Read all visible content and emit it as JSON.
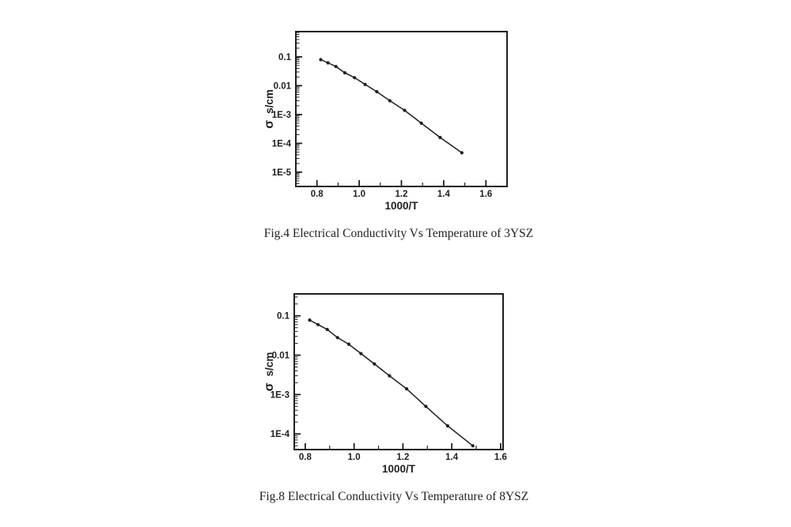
{
  "page": {
    "background": "#ffffff",
    "ink": "#1f1f1f"
  },
  "chart_data": [
    {
      "type": "line",
      "caption": "Fig.4 Electrical Conductivity Vs Temperature of 3YSZ",
      "xlabel": "1000/T",
      "ylabel": "σ s/cm",
      "xscale": "linear",
      "yscale": "log",
      "grid": false,
      "marker": "dot",
      "line_color": "#1f1f1f",
      "x": [
        0.818,
        0.852,
        0.89,
        0.932,
        0.978,
        1.028,
        1.083,
        1.145,
        1.215,
        1.294,
        1.383,
        1.486
      ],
      "y": [
        0.08,
        0.062,
        0.046,
        0.028,
        0.019,
        0.011,
        0.0062,
        0.003,
        0.0014,
        0.0005,
        0.00016,
        4.7e-05
      ],
      "xlim": [
        0.7,
        1.7
      ],
      "ylim": [
        3.2e-06,
        0.75
      ],
      "xticks": [
        0.8,
        1.0,
        1.2,
        1.4,
        1.6
      ],
      "xtick_labels": [
        "0.8",
        "1.0",
        "1.2",
        "1.4",
        "1.6"
      ],
      "yticks": [
        0.1,
        0.01,
        0.001,
        0.0001,
        1e-05
      ],
      "ytick_labels": [
        "0.1",
        "0.01",
        "1E-3",
        "1E-4",
        "1E-5"
      ]
    },
    {
      "type": "line",
      "caption": "Fig.8 Electrical Conductivity Vs Temperature of 8YSZ",
      "xlabel": "1000/T",
      "ylabel": "σ s/cm",
      "xscale": "linear",
      "yscale": "log",
      "grid": false,
      "marker": "dot",
      "line_color": "#1f1f1f",
      "x": [
        0.818,
        0.852,
        0.89,
        0.932,
        0.978,
        1.028,
        1.083,
        1.145,
        1.215,
        1.294,
        1.383,
        1.486
      ],
      "y": [
        0.078,
        0.06,
        0.045,
        0.028,
        0.019,
        0.011,
        0.006,
        0.003,
        0.0014,
        0.0005,
        0.00016,
        5e-05
      ],
      "xlim": [
        0.755,
        1.61
      ],
      "ylim": [
        4e-05,
        0.36
      ],
      "xticks": [
        0.8,
        1.0,
        1.2,
        1.4,
        1.6
      ],
      "xtick_labels": [
        "0.8",
        "1.0",
        "1.2",
        "1.4",
        "1.6"
      ],
      "yticks": [
        0.1,
        0.01,
        0.001,
        0.0001
      ],
      "ytick_labels": [
        "0.1",
        "0.01",
        "1E-3",
        "1E-4"
      ]
    }
  ]
}
